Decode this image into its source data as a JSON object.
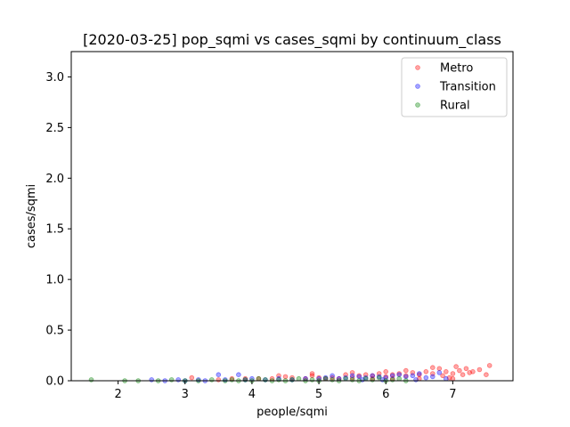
{
  "chart_data": {
    "type": "scatter",
    "title": "[2020-03-25] pop_sqmi vs cases_sqmi by continuum_class",
    "xlabel": "people/sqmi",
    "ylabel": "cases/sqmi",
    "xlim": [
      1.3,
      7.9
    ],
    "ylim": [
      0,
      3.25
    ],
    "xticks": [
      "2",
      "3",
      "4",
      "5",
      "6",
      "7"
    ],
    "yticks": [
      "0.0",
      "0.5",
      "1.0",
      "1.5",
      "2.0",
      "2.5",
      "3.0"
    ],
    "grid": false,
    "legend_position": "top-right",
    "series": [
      {
        "name": "Metro",
        "color": "#ff0000",
        "points": [
          [
            3.1,
            0.03
          ],
          [
            3.5,
            0.01
          ],
          [
            3.7,
            0.02
          ],
          [
            3.9,
            0.02
          ],
          [
            4.1,
            0.02
          ],
          [
            4.3,
            0.02
          ],
          [
            4.4,
            0.05
          ],
          [
            4.5,
            0.04
          ],
          [
            4.6,
            0.03
          ],
          [
            4.8,
            0.02
          ],
          [
            4.9,
            0.07
          ],
          [
            4.9,
            0.05
          ],
          [
            5.0,
            0.03
          ],
          [
            5.1,
            0.02
          ],
          [
            5.2,
            0.03
          ],
          [
            5.3,
            0.02
          ],
          [
            5.4,
            0.06
          ],
          [
            5.5,
            0.08
          ],
          [
            5.5,
            0.03
          ],
          [
            5.6,
            0.05
          ],
          [
            5.7,
            0.06
          ],
          [
            5.8,
            0.05
          ],
          [
            5.9,
            0.07
          ],
          [
            6.0,
            0.09
          ],
          [
            6.0,
            0.04
          ],
          [
            6.1,
            0.06
          ],
          [
            6.2,
            0.07
          ],
          [
            6.3,
            0.1
          ],
          [
            6.3,
            0.05
          ],
          [
            6.4,
            0.08
          ],
          [
            6.5,
            0.06
          ],
          [
            6.6,
            0.09
          ],
          [
            6.7,
            0.13
          ],
          [
            6.7,
            0.07
          ],
          [
            6.8,
            0.12
          ],
          [
            6.85,
            0.05
          ],
          [
            6.9,
            0.09
          ],
          [
            7.0,
            0.07
          ],
          [
            7.05,
            0.14
          ],
          [
            7.1,
            0.1
          ],
          [
            7.15,
            0.06
          ],
          [
            7.2,
            0.12
          ],
          [
            7.25,
            0.08
          ],
          [
            7.3,
            0.09
          ],
          [
            7.4,
            0.11
          ],
          [
            7.5,
            0.06
          ],
          [
            7.55,
            0.15
          ],
          [
            6.95,
            0.03
          ],
          [
            7.0,
            0.02
          ],
          [
            6.5,
            0.02
          ],
          [
            5.8,
            0.02
          ],
          [
            6.1,
            0.02
          ]
        ]
      },
      {
        "name": "Transition",
        "color": "#0000ff",
        "points": [
          [
            2.5,
            0.01
          ],
          [
            2.7,
            0.0
          ],
          [
            2.9,
            0.01
          ],
          [
            3.0,
            0.0
          ],
          [
            3.2,
            0.01
          ],
          [
            3.3,
            0.0
          ],
          [
            3.5,
            0.06
          ],
          [
            3.8,
            0.06
          ],
          [
            3.6,
            0.01
          ],
          [
            3.9,
            0.01
          ],
          [
            4.0,
            0.02
          ],
          [
            4.2,
            0.01
          ],
          [
            4.4,
            0.02
          ],
          [
            4.6,
            0.01
          ],
          [
            4.8,
            0.02
          ],
          [
            5.0,
            0.02
          ],
          [
            5.1,
            0.03
          ],
          [
            5.2,
            0.05
          ],
          [
            5.3,
            0.02
          ],
          [
            5.4,
            0.03
          ],
          [
            5.5,
            0.05
          ],
          [
            5.6,
            0.04
          ],
          [
            5.7,
            0.03
          ],
          [
            5.8,
            0.05
          ],
          [
            5.9,
            0.04
          ],
          [
            6.0,
            0.03
          ],
          [
            6.1,
            0.05
          ],
          [
            6.2,
            0.06
          ],
          [
            6.3,
            0.04
          ],
          [
            6.4,
            0.05
          ],
          [
            6.5,
            0.07
          ],
          [
            6.6,
            0.03
          ],
          [
            6.7,
            0.04
          ],
          [
            6.8,
            0.08
          ],
          [
            6.9,
            0.02
          ],
          [
            6.45,
            0.01
          ],
          [
            5.95,
            0.01
          ],
          [
            5.65,
            0.01
          ]
        ]
      },
      {
        "name": "Rural",
        "color": "#008000",
        "points": [
          [
            1.6,
            0.01
          ],
          [
            2.1,
            0.0
          ],
          [
            2.3,
            0.0
          ],
          [
            2.6,
            0.0
          ],
          [
            2.8,
            0.01
          ],
          [
            3.0,
            0.0
          ],
          [
            3.2,
            0.0
          ],
          [
            3.4,
            0.01
          ],
          [
            3.6,
            0.0
          ],
          [
            3.7,
            0.01
          ],
          [
            3.8,
            0.0
          ],
          [
            3.9,
            0.01
          ],
          [
            4.0,
            0.0
          ],
          [
            4.1,
            0.02
          ],
          [
            4.2,
            0.01
          ],
          [
            4.3,
            0.0
          ],
          [
            4.4,
            0.01
          ],
          [
            4.5,
            0.0
          ],
          [
            4.6,
            0.01
          ],
          [
            4.7,
            0.02
          ],
          [
            4.8,
            0.0
          ],
          [
            4.9,
            0.01
          ],
          [
            5.0,
            0.0
          ],
          [
            5.1,
            0.02
          ],
          [
            5.2,
            0.01
          ],
          [
            5.3,
            0.0
          ],
          [
            5.4,
            0.02
          ],
          [
            5.5,
            0.01
          ],
          [
            5.6,
            0.0
          ],
          [
            5.7,
            0.02
          ],
          [
            5.8,
            0.01
          ],
          [
            5.9,
            0.03
          ],
          [
            6.0,
            0.0
          ],
          [
            6.1,
            0.01
          ],
          [
            6.2,
            0.02
          ],
          [
            6.3,
            0.0
          ]
        ]
      }
    ]
  }
}
